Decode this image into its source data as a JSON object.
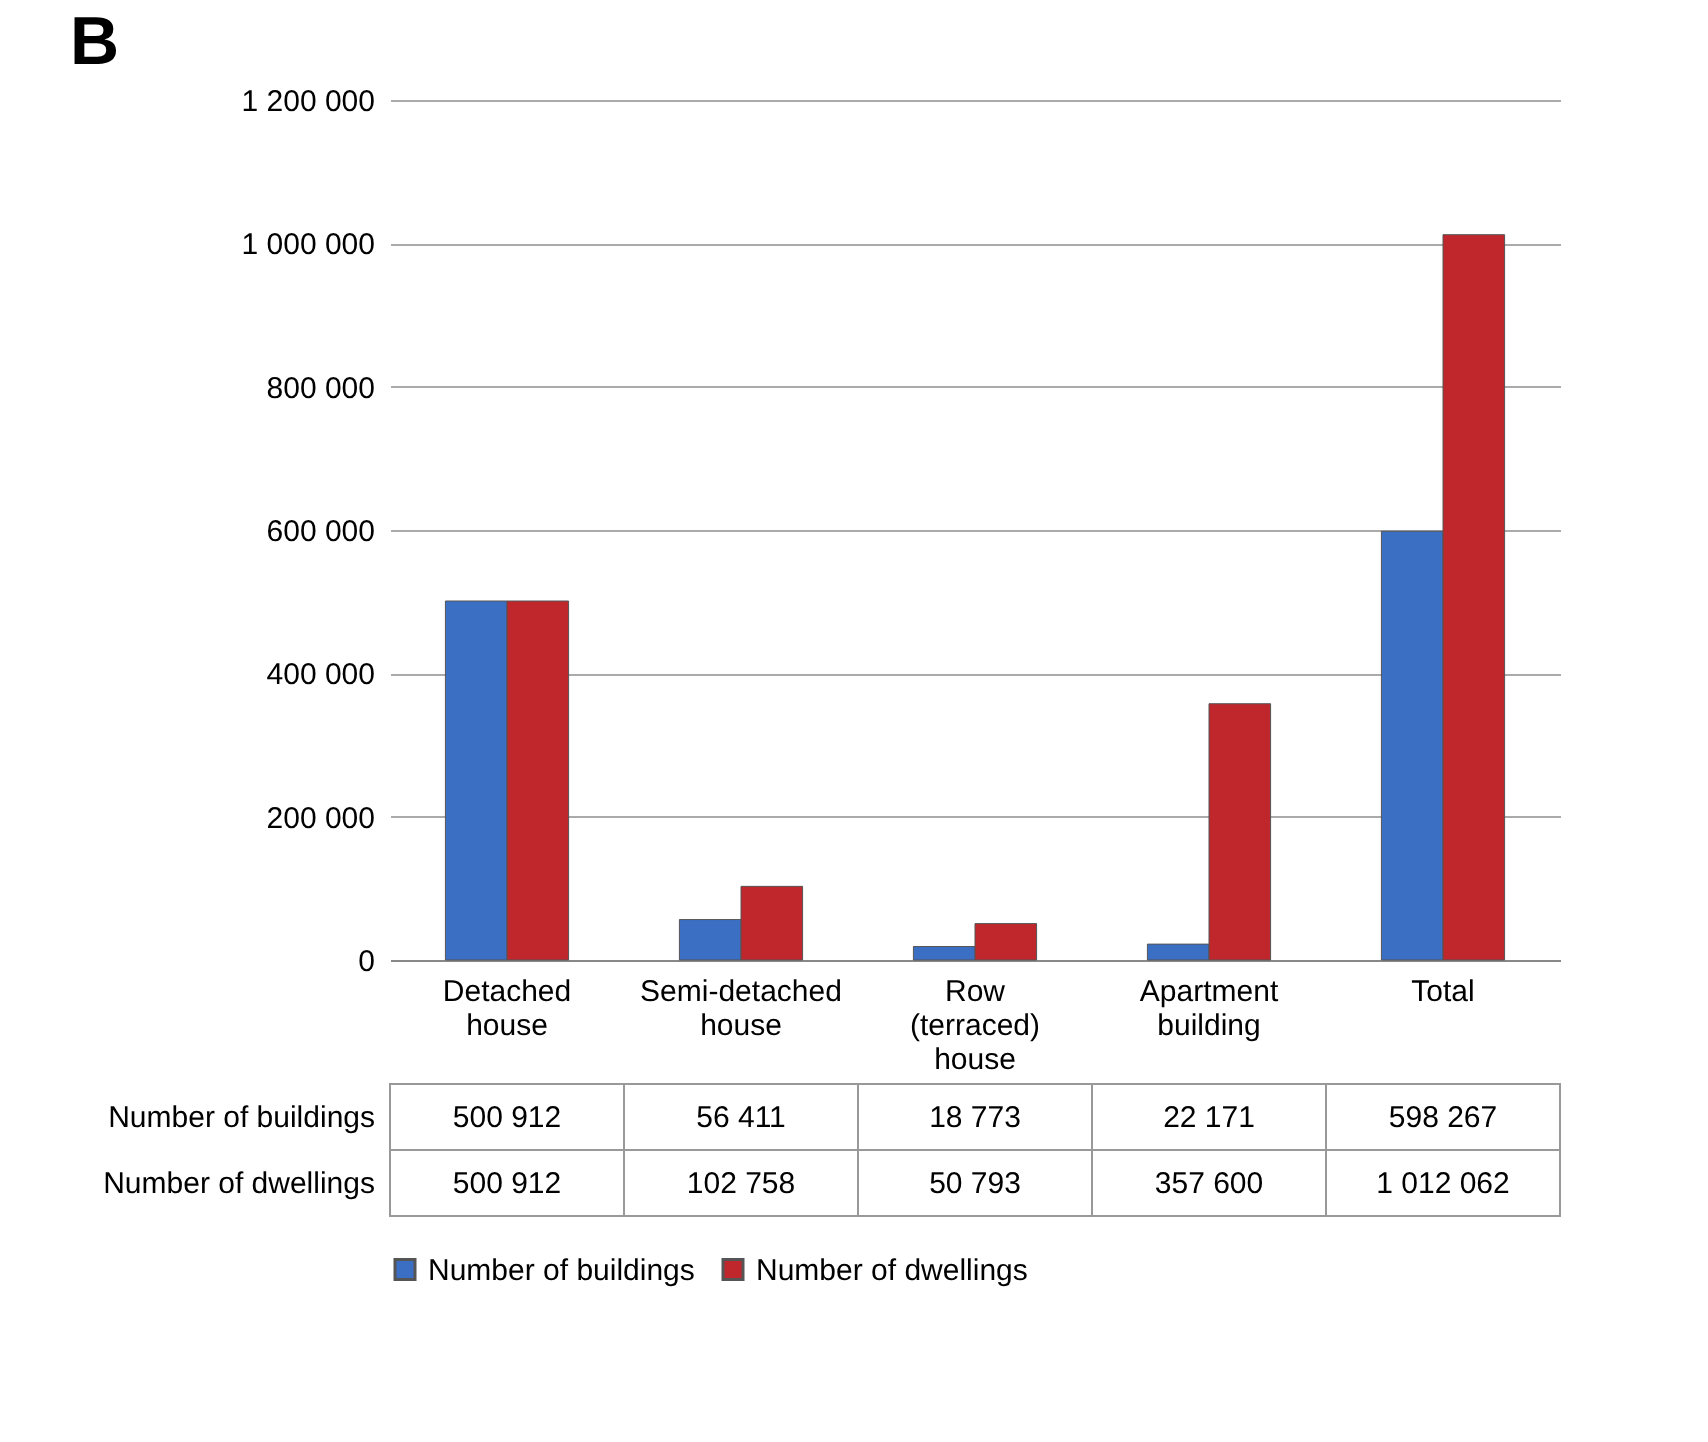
{
  "chart_data": {
    "type": "bar",
    "title": "B",
    "categories": [
      "Detached house",
      "Semi-detached house",
      "Row (terraced) house",
      "Apartment building",
      "Total"
    ],
    "series": [
      {
        "name": "Number of buildings",
        "color": "#3a6fc4",
        "values": [
          500912,
          56411,
          18773,
          22171,
          598267
        ],
        "value_labels": [
          "500 912",
          "56 411",
          "18 773",
          "22 171",
          "598 267"
        ]
      },
      {
        "name": "Number of dwellings",
        "color": "#c0272d",
        "values": [
          500912,
          102758,
          50793,
          357600,
          1012062
        ],
        "value_labels": [
          "500 912",
          "102 758",
          "50 793",
          "357 600",
          "1 012 062"
        ]
      }
    ],
    "ylim": [
      0,
      1200000
    ],
    "yticks": [
      {
        "value": 0,
        "label": "0"
      },
      {
        "value": 200000,
        "label": "200 000"
      },
      {
        "value": 400000,
        "label": "400 000"
      },
      {
        "value": 600000,
        "label": "600 000"
      },
      {
        "value": 800000,
        "label": "800 000"
      },
      {
        "value": 1000000,
        "label": "1 000 000"
      },
      {
        "value": 1200000,
        "label": "1 200 000"
      }
    ],
    "grid": "y",
    "legend": "bottom"
  }
}
